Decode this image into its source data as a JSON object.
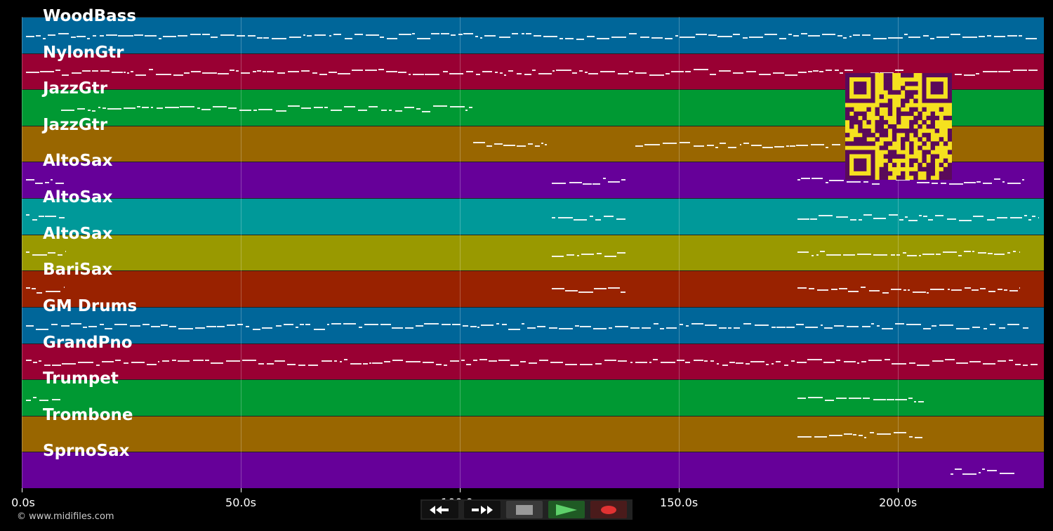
{
  "timeline": {
    "duration_s": 233.3,
    "ticks": [
      "0.0s",
      "50.0s",
      "100.0s",
      "150.0s",
      "200.0s"
    ],
    "tick_values": [
      0,
      50,
      100,
      150,
      200
    ]
  },
  "tracks": [
    {
      "name": "WoodBass",
      "color": "#006699",
      "notes": [
        [
          1,
          232
        ]
      ]
    },
    {
      "name": "NylonGtr",
      "color": "#990033",
      "notes": [
        [
          1,
          232
        ]
      ]
    },
    {
      "name": "JazzGtr",
      "color": "#009933",
      "notes": [
        [
          9,
          103
        ]
      ]
    },
    {
      "name": "JazzGtr",
      "color": "#996600",
      "notes": [
        [
          103,
          120
        ],
        [
          140,
          187
        ]
      ]
    },
    {
      "name": "AltoSax",
      "color": "#660099",
      "notes": [
        [
          1,
          10
        ],
        [
          121,
          138
        ],
        [
          177,
          229
        ]
      ]
    },
    {
      "name": "AltoSax",
      "color": "#009999",
      "notes": [
        [
          1,
          10
        ],
        [
          121,
          138
        ],
        [
          177,
          232
        ]
      ]
    },
    {
      "name": "AltoSax",
      "color": "#999900",
      "notes": [
        [
          1,
          10
        ],
        [
          121,
          138
        ],
        [
          177,
          228
        ]
      ]
    },
    {
      "name": "BariSax",
      "color": "#992200",
      "notes": [
        [
          1,
          10
        ],
        [
          121,
          138
        ],
        [
          177,
          228
        ]
      ]
    },
    {
      "name": "GM Drums",
      "color": "#006699",
      "notes": [
        [
          1,
          230
        ]
      ]
    },
    {
      "name": "GrandPno",
      "color": "#990033",
      "notes": [
        [
          1,
          232
        ]
      ]
    },
    {
      "name": "Trumpet",
      "color": "#009933",
      "notes": [
        [
          1,
          9
        ],
        [
          177,
          206
        ]
      ]
    },
    {
      "name": "Trombone",
      "color": "#996600",
      "notes": [
        [
          177,
          206
        ]
      ]
    },
    {
      "name": "SprnoSax",
      "color": "#660099",
      "notes": [
        [
          212,
          227
        ]
      ]
    }
  ],
  "copyright": "© www.midifiles.com",
  "controls": [
    {
      "name": "rewind",
      "icon": "rewind-icon"
    },
    {
      "name": "fast-forward",
      "icon": "fast-forward-icon"
    },
    {
      "name": "stop",
      "icon": "stop-icon"
    },
    {
      "name": "play",
      "icon": "play-icon"
    },
    {
      "name": "record",
      "icon": "record-icon"
    }
  ]
}
